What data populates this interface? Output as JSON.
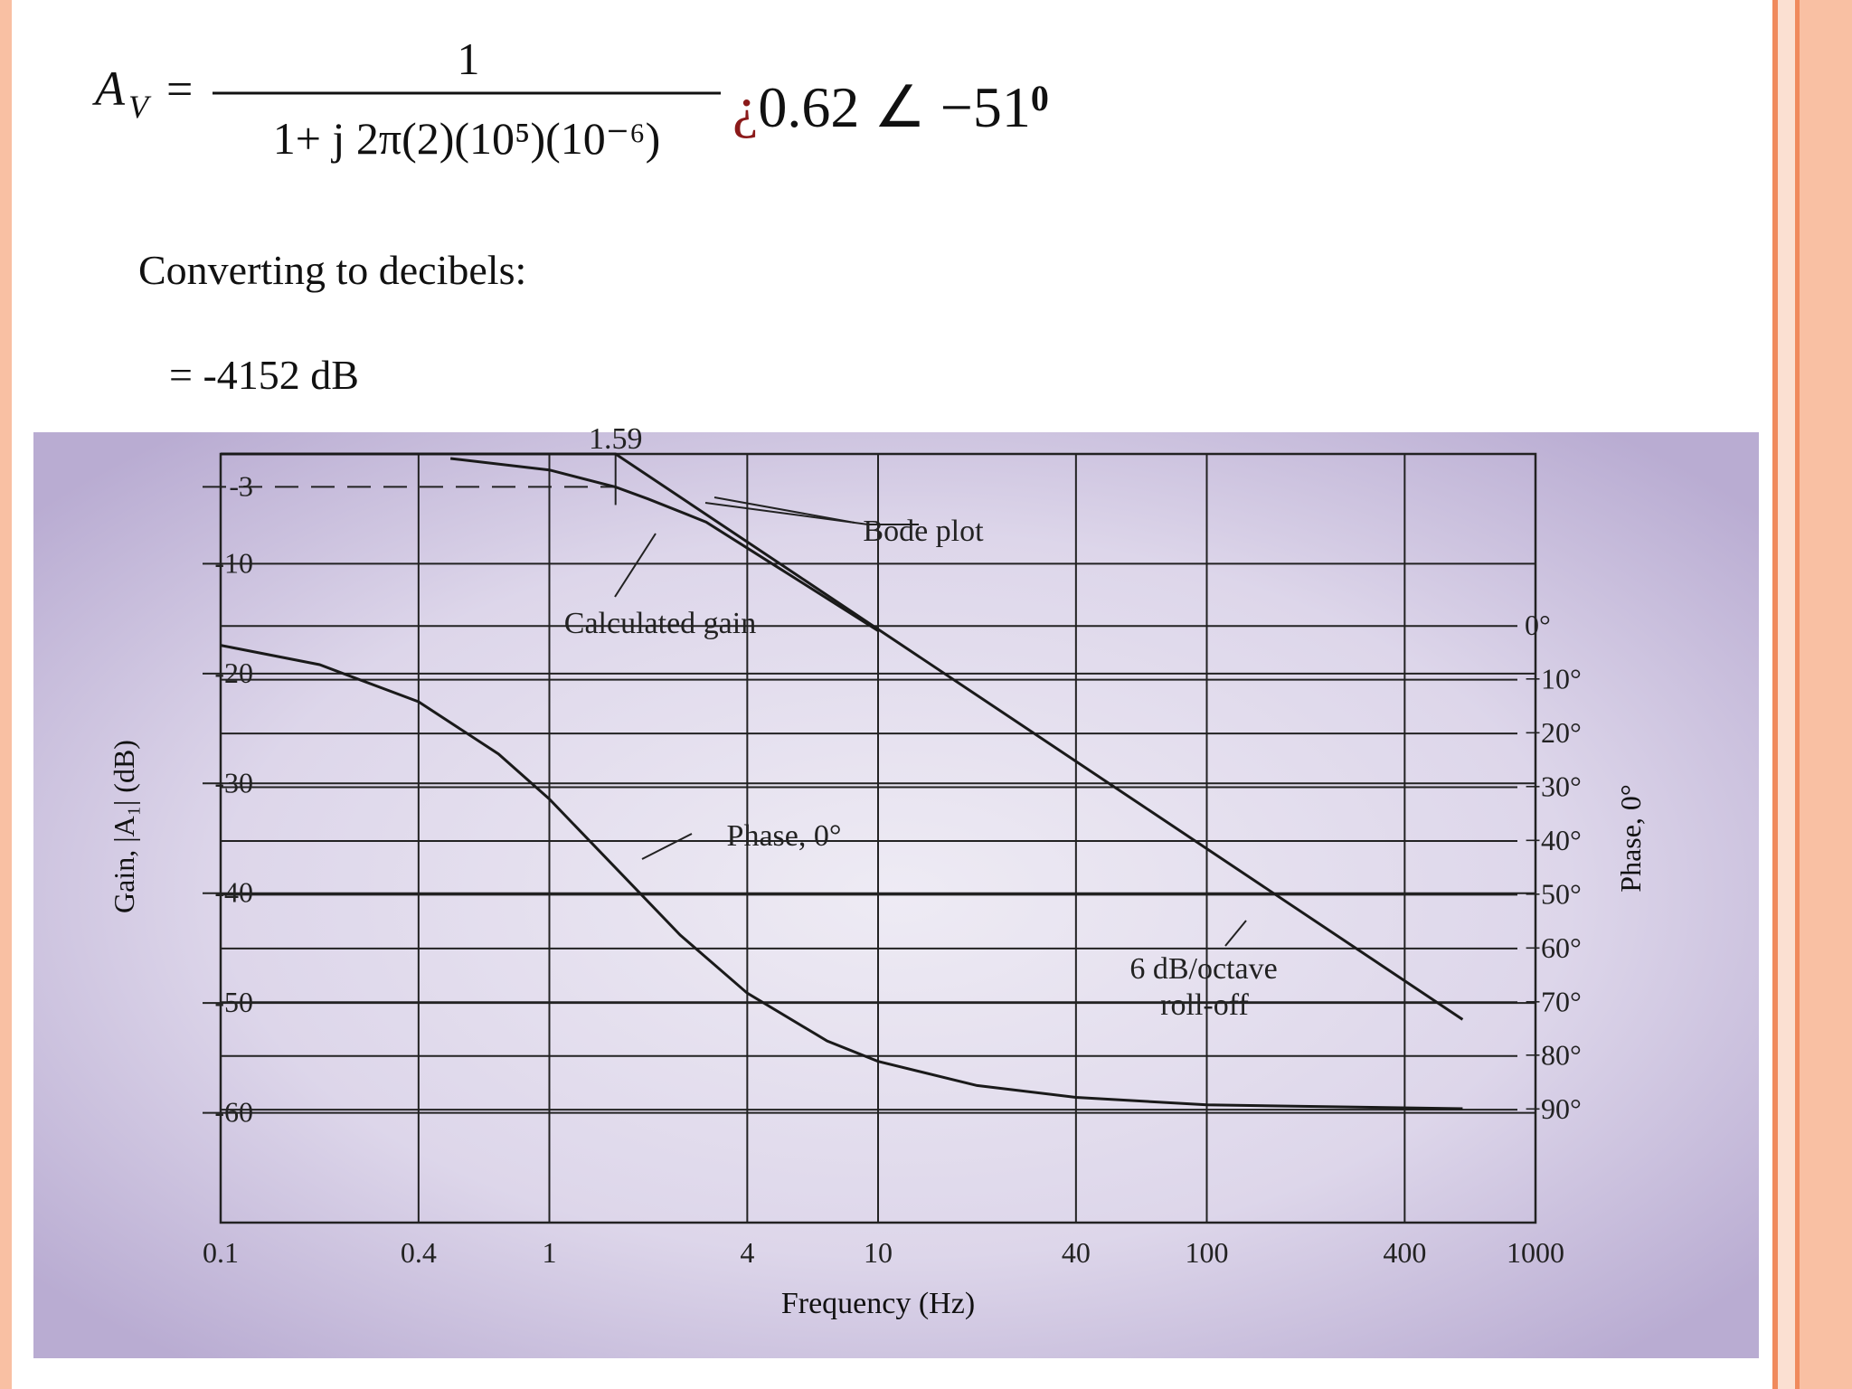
{
  "slide": {
    "formula": {
      "symbol": "A",
      "subscript": "V",
      "equals": "=",
      "numerator": "1",
      "denominator": "1+ j 2π(2)(10⁵)(10⁻⁶)",
      "inverted_question": "¿",
      "result": "0.62 ∠ −51",
      "exponent": "0"
    },
    "line1": "Converting to decibels:",
    "line2": "= -4152 dB"
  },
  "chart_data": {
    "type": "line",
    "xscale": "log",
    "xlabel": "Frequency (Hz)",
    "ylabel": "Gain, |A₁| (dB)",
    "y2label": "Phase, 0°",
    "xlim": [
      0.1,
      1000
    ],
    "xticks": [
      0.1,
      0.4,
      1,
      4,
      10,
      40,
      100,
      400,
      1000
    ],
    "ylim": [
      -70,
      0
    ],
    "yticks": [
      -3,
      -10,
      -20,
      -30,
      -40,
      -50,
      -60
    ],
    "y2lim": [
      -111,
      32
    ],
    "y2ticks": [
      {
        "value": 0,
        "label": "0°"
      },
      {
        "value": -10,
        "label": "−10°"
      },
      {
        "value": -20,
        "label": "−20°"
      },
      {
        "value": -30,
        "label": "−30°"
      },
      {
        "value": -40,
        "label": "−40°"
      },
      {
        "value": -50,
        "label": "−50°"
      },
      {
        "value": -60,
        "label": "−60°"
      },
      {
        "value": -70,
        "label": "−70°"
      },
      {
        "value": -80,
        "label": "−80°"
      },
      {
        "value": -90,
        "label": "−90°"
      }
    ],
    "grid": true,
    "cutoff": {
      "label": "1.59",
      "x": 1.59
    },
    "annotations": [
      "6 dB/octave",
      "roll-off"
    ],
    "series": [
      {
        "name": "Bode plot",
        "color": "#1a1a1a",
        "x": [
          0.1,
          1.59,
          600
        ],
        "values": [
          0,
          0,
          -51.5
        ]
      },
      {
        "name": "Calculated gain",
        "color": "#1a1a1a",
        "x": [
          0.5,
          1,
          1.59,
          2,
          3,
          5,
          10
        ],
        "values": [
          -0.41,
          -1.46,
          -3.01,
          -4.1,
          -6.2,
          -10.4,
          -16.1
        ]
      },
      {
        "name": "Phase, 0°",
        "color": "#1a1a1a",
        "axis": "y2",
        "x": [
          0.1,
          0.2,
          0.4,
          0.7,
          1,
          1.59,
          2.5,
          4,
          7,
          10,
          20,
          40,
          100,
          600
        ],
        "values": [
          -3.6,
          -7.2,
          -14.1,
          -23.8,
          -32.2,
          -45,
          -57.5,
          -68.3,
          -77.2,
          -81,
          -85.5,
          -87.7,
          -89.1,
          -89.8
        ]
      }
    ]
  }
}
